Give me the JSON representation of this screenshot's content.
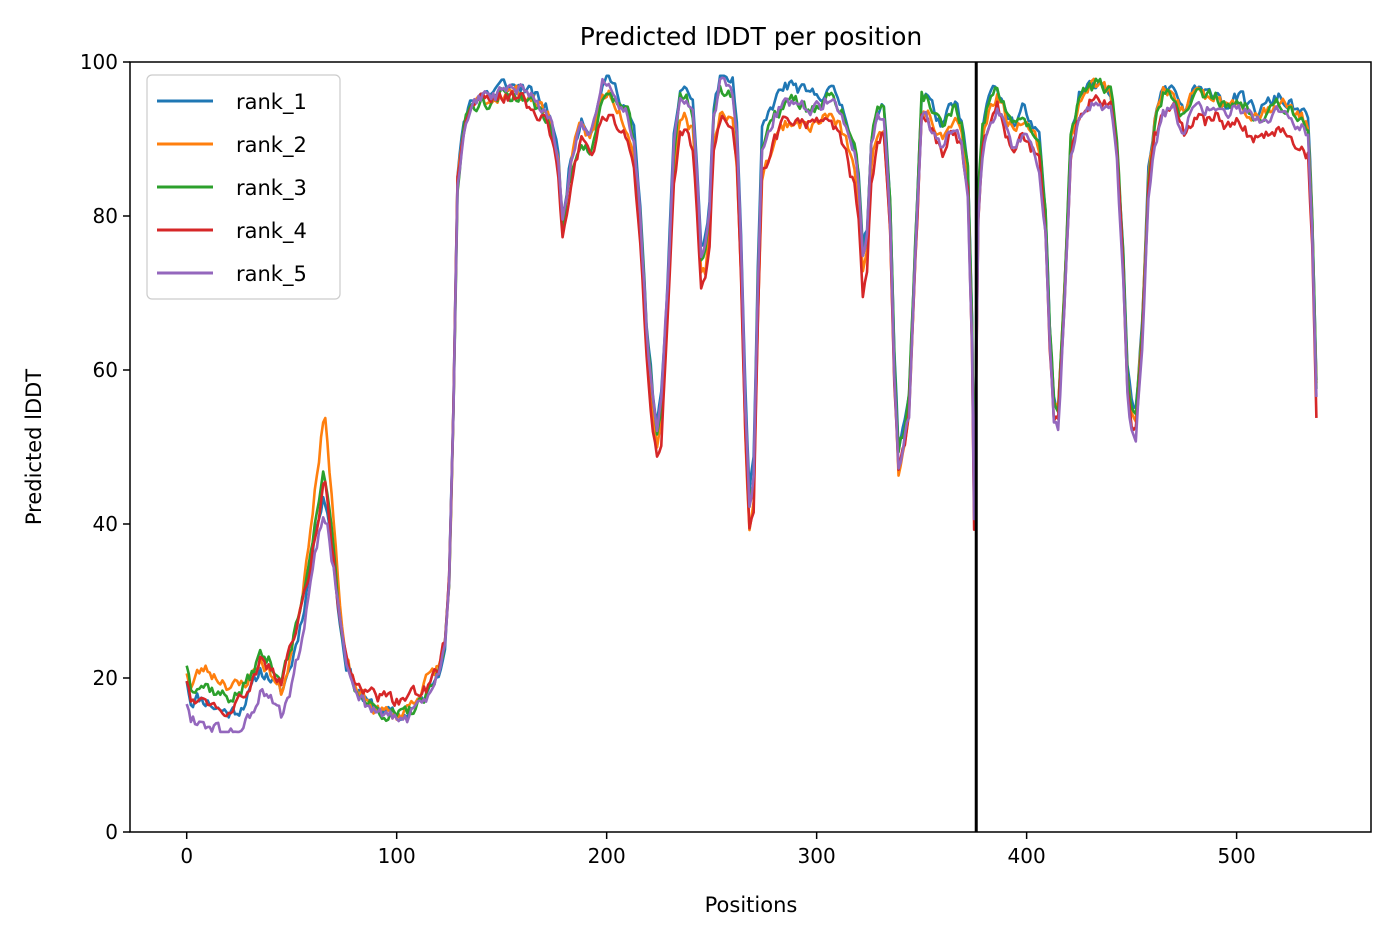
{
  "chart_data": {
    "type": "line",
    "title": "Predicted lDDT per position",
    "xlabel": "Positions",
    "ylabel": "Predicted lDDT",
    "xlim": [
      -27,
      564
    ],
    "ylim": [
      0,
      100
    ],
    "xticks": [
      0,
      100,
      200,
      300,
      400,
      500
    ],
    "yticks": [
      0,
      20,
      40,
      60,
      80,
      100
    ],
    "grid": false,
    "legend_position": "top-left",
    "vline": {
      "x": 376,
      "color": "#000000"
    },
    "anchors": [
      [
        0,
        20
      ],
      [
        2,
        17
      ],
      [
        5,
        17.5
      ],
      [
        10,
        17
      ],
      [
        15,
        16
      ],
      [
        20,
        15.5
      ],
      [
        25,
        16
      ],
      [
        30,
        18
      ],
      [
        35,
        21
      ],
      [
        40,
        20
      ],
      [
        45,
        18
      ],
      [
        50,
        22
      ],
      [
        55,
        28
      ],
      [
        58,
        33
      ],
      [
        62,
        40
      ],
      [
        65,
        44
      ],
      [
        67,
        42
      ],
      [
        70,
        35
      ],
      [
        73,
        27
      ],
      [
        76,
        22
      ],
      [
        80,
        19
      ],
      [
        85,
        17
      ],
      [
        90,
        16
      ],
      [
        95,
        15.5
      ],
      [
        100,
        15
      ],
      [
        105,
        15.5
      ],
      [
        110,
        16.5
      ],
      [
        115,
        18
      ],
      [
        120,
        21
      ],
      [
        123,
        25
      ],
      [
        125,
        33
      ],
      [
        127,
        55
      ],
      [
        129,
        85
      ],
      [
        132,
        92
      ],
      [
        135,
        95
      ],
      [
        140,
        96
      ],
      [
        145,
        96
      ],
      [
        150,
        97
      ],
      [
        155,
        97
      ],
      [
        160,
        97
      ],
      [
        165,
        96
      ],
      [
        170,
        95
      ],
      [
        174,
        93
      ],
      [
        177,
        88
      ],
      [
        179,
        80
      ],
      [
        182,
        86
      ],
      [
        185,
        90
      ],
      [
        188,
        93
      ],
      [
        192,
        91
      ],
      [
        195,
        93
      ],
      [
        198,
        97
      ],
      [
        202,
        97
      ],
      [
        206,
        95
      ],
      [
        210,
        93
      ],
      [
        213,
        90
      ],
      [
        216,
        80
      ],
      [
        219,
        65
      ],
      [
        222,
        56
      ],
      [
        224,
        52
      ],
      [
        226,
        55
      ],
      [
        229,
        70
      ],
      [
        232,
        88
      ],
      [
        235,
        95
      ],
      [
        238,
        95
      ],
      [
        241,
        93
      ],
      [
        243,
        85
      ],
      [
        245,
        74
      ],
      [
        247,
        75
      ],
      [
        249,
        80
      ],
      [
        251,
        92
      ],
      [
        254,
        96
      ],
      [
        257,
        96
      ],
      [
        260,
        95
      ],
      [
        262,
        90
      ],
      [
        264,
        75
      ],
      [
        266,
        55
      ],
      [
        268,
        42
      ],
      [
        270,
        45
      ],
      [
        272,
        70
      ],
      [
        274,
        88
      ],
      [
        277,
        90
      ],
      [
        280,
        92
      ],
      [
        285,
        94
      ],
      [
        290,
        94
      ],
      [
        295,
        93
      ],
      [
        300,
        93
      ],
      [
        305,
        94
      ],
      [
        310,
        93
      ],
      [
        315,
        90
      ],
      [
        318,
        87
      ],
      [
        320,
        83
      ],
      [
        322,
        73
      ],
      [
        324,
        76
      ],
      [
        326,
        88
      ],
      [
        329,
        92
      ],
      [
        332,
        93
      ],
      [
        335,
        80
      ],
      [
        337,
        60
      ],
      [
        339,
        48
      ],
      [
        341,
        50
      ],
      [
        344,
        55
      ],
      [
        347,
        75
      ],
      [
        350,
        94
      ],
      [
        353,
        94
      ],
      [
        356,
        92
      ],
      [
        360,
        90
      ],
      [
        363,
        92
      ],
      [
        366,
        93
      ],
      [
        369,
        91
      ],
      [
        372,
        85
      ],
      [
        374,
        65
      ],
      [
        375,
        42
      ],
      [
        377,
        82
      ],
      [
        379,
        90
      ],
      [
        382,
        94
      ],
      [
        386,
        96
      ],
      [
        390,
        93
      ],
      [
        394,
        91
      ],
      [
        398,
        93
      ],
      [
        402,
        91
      ],
      [
        406,
        89
      ],
      [
        409,
        80
      ],
      [
        411,
        65
      ],
      [
        413,
        56
      ],
      [
        415,
        55
      ],
      [
        418,
        70
      ],
      [
        421,
        90
      ],
      [
        425,
        95
      ],
      [
        430,
        97
      ],
      [
        435,
        97
      ],
      [
        440,
        96
      ],
      [
        443,
        90
      ],
      [
        446,
        75
      ],
      [
        448,
        60
      ],
      [
        450,
        55
      ],
      [
        452,
        54
      ],
      [
        455,
        65
      ],
      [
        458,
        85
      ],
      [
        461,
        92
      ],
      [
        465,
        96
      ],
      [
        470,
        96
      ],
      [
        475,
        93
      ],
      [
        480,
        96
      ],
      [
        485,
        95
      ],
      [
        490,
        96
      ],
      [
        495,
        94
      ],
      [
        500,
        95
      ],
      [
        505,
        94
      ],
      [
        510,
        93
      ],
      [
        515,
        94
      ],
      [
        520,
        95
      ],
      [
        525,
        94
      ],
      [
        530,
        93
      ],
      [
        534,
        92
      ],
      [
        536,
        80
      ],
      [
        538,
        58
      ]
    ],
    "series": [
      {
        "name": "rank_1",
        "color": "#1f77b4",
        "seed": 11,
        "offsets": [
          [
            150,
            0
          ],
          [
            170,
            -0.5
          ],
          [
            280,
            3
          ],
          [
            330,
            2
          ],
          [
            420,
            0.5
          ]
        ]
      },
      {
        "name": "rank_2",
        "color": "#ff7f0e",
        "seed": 23,
        "offsets": [
          [
            0,
            1
          ],
          [
            8,
            4
          ],
          [
            18,
            4
          ],
          [
            30,
            2
          ],
          [
            45,
            0
          ],
          [
            55,
            3
          ],
          [
            62,
            7
          ],
          [
            66,
            10
          ],
          [
            69,
            7
          ],
          [
            75,
            0
          ],
          [
            100,
            0
          ],
          [
            115,
            2
          ],
          [
            125,
            -1
          ],
          [
            200,
            -1
          ],
          [
            268,
            -3
          ],
          [
            300,
            -1
          ],
          [
            340,
            -1
          ],
          [
            380,
            0
          ],
          [
            420,
            0
          ]
        ]
      },
      {
        "name": "rank_3",
        "color": "#2ca02c",
        "seed": 37,
        "offsets": [
          [
            60,
            2
          ],
          [
            66,
            3
          ],
          [
            72,
            0
          ],
          [
            100,
            0
          ],
          [
            180,
            -2
          ],
          [
            190,
            -3
          ],
          [
            210,
            0
          ],
          [
            300,
            1
          ],
          [
            320,
            2
          ],
          [
            420,
            0
          ]
        ]
      },
      {
        "name": "rank_4",
        "color": "#d62728",
        "seed": 49,
        "offsets": [
          [
            0,
            0
          ],
          [
            50,
            2
          ],
          [
            62,
            0
          ],
          [
            66,
            2
          ],
          [
            72,
            0
          ],
          [
            85,
            1.5
          ],
          [
            105,
            2
          ],
          [
            120,
            0
          ],
          [
            179,
            -3
          ],
          [
            225,
            -4
          ],
          [
            246,
            -4
          ],
          [
            268,
            -3
          ],
          [
            300,
            -1
          ],
          [
            322,
            -4
          ],
          [
            340,
            -1
          ],
          [
            365,
            -2
          ],
          [
            412,
            -2
          ],
          [
            450,
            -2
          ],
          [
            538,
            -4
          ]
        ]
      },
      {
        "name": "rank_5",
        "color": "#9467bd",
        "seed": 61,
        "offsets": [
          [
            66,
            -3
          ],
          [
            72,
            0
          ],
          [
            100,
            -0.5
          ],
          [
            180,
            -1
          ],
          [
            247,
            1
          ],
          [
            322,
            1
          ],
          [
            340,
            -1
          ],
          [
            450,
            -3
          ],
          [
            500,
            -1
          ]
        ]
      }
    ]
  }
}
